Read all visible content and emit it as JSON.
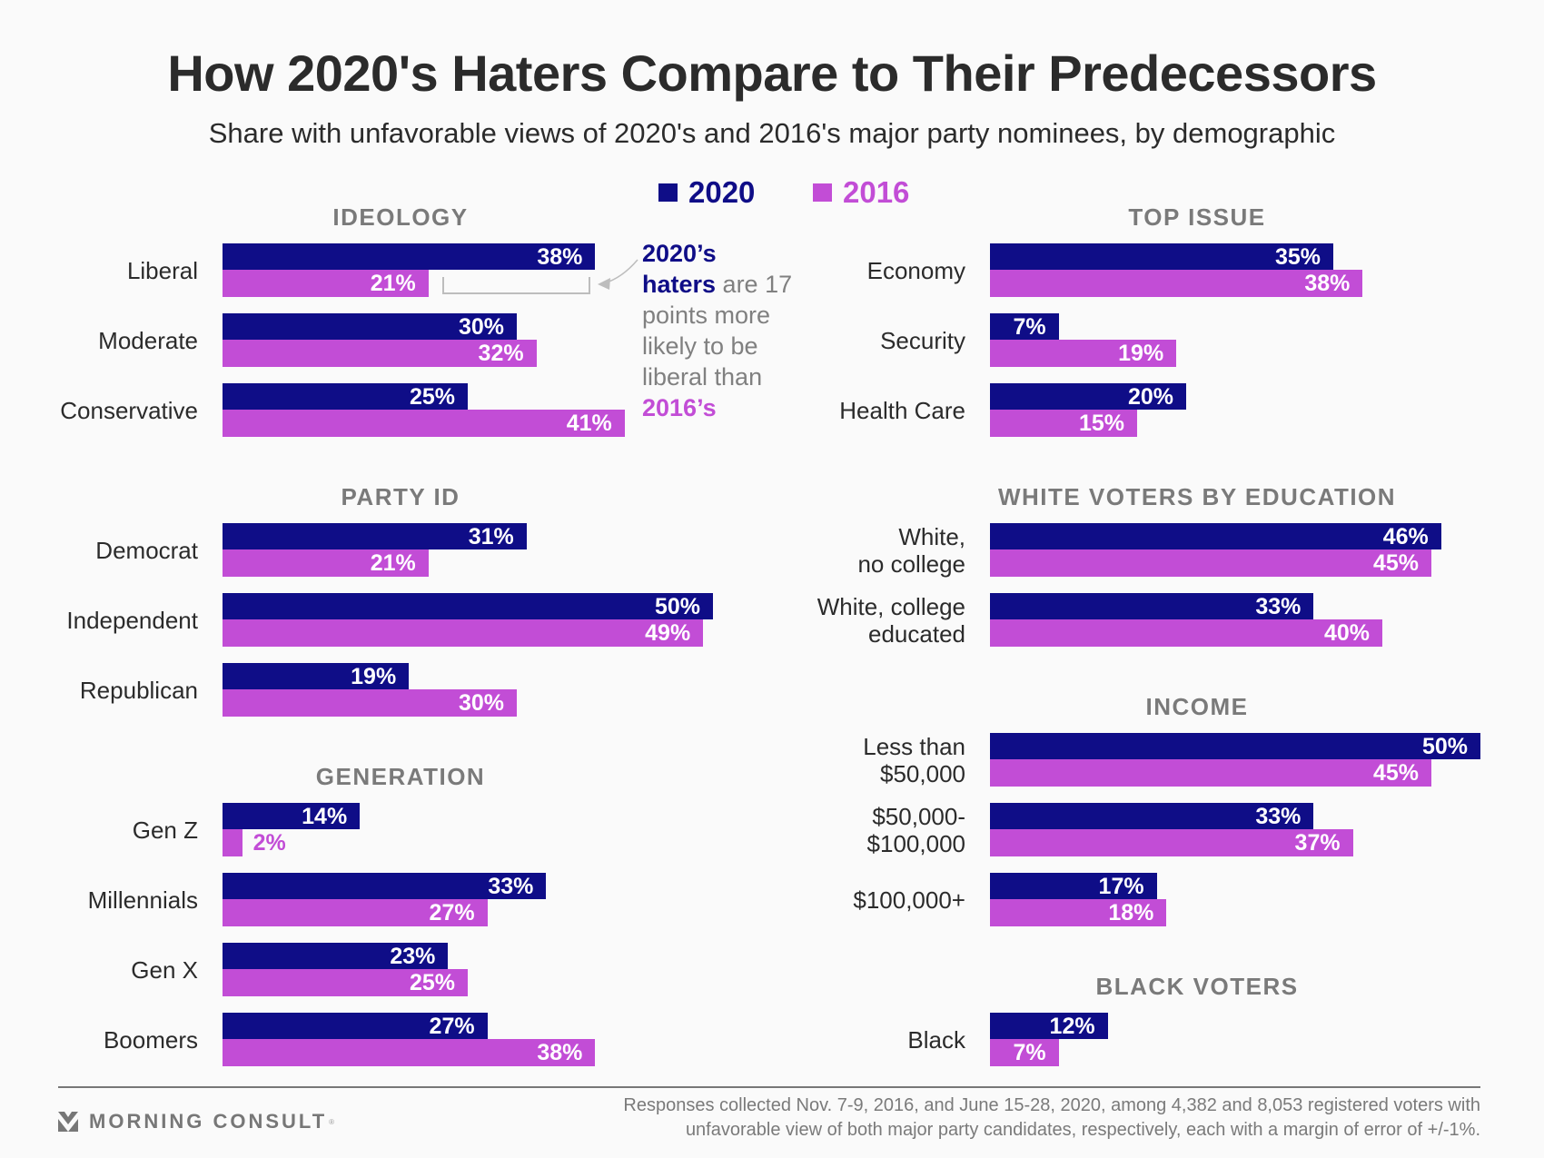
{
  "header": {
    "title": "How 2020's Haters Compare to Their Predecessors",
    "subtitle": "Share with unfavorable views of 2020's and 2016's major party nominees, by demographic"
  },
  "legend": [
    {
      "label": "2020",
      "color": "#0f0d87"
    },
    {
      "label": "2016",
      "color": "#c24dd6"
    }
  ],
  "annotation": {
    "part1": "2020’s",
    "part2": "haters",
    "part3": " are 17 points more likely to be liberal than ",
    "part4": "2016’s"
  },
  "footer": {
    "logo": "MORNING CONSULT",
    "logo_mark": "®",
    "note_line1": "Responses collected Nov. 7-9, 2016, and June 15-28, 2020, among 4,382 and 8,053 registered voters with",
    "note_line2": "unfavorable view of both major party candidates, respectively, each with a margin of error of +/-1%."
  },
  "chart_data": {
    "type": "bar",
    "orientation": "horizontal",
    "title": "How 2020's Haters Compare to Their Predecessors",
    "subtitle": "Share with unfavorable views of 2020's and 2016's major party nominees, by demographic",
    "unit": "%",
    "series_names": [
      "2020",
      "2016"
    ],
    "colors": {
      "2020": "#0f0d87",
      "2016": "#c24dd6"
    },
    "xlim": [
      0,
      50
    ],
    "grid": false,
    "legend": "top-center",
    "panels": [
      {
        "heading": "IDEOLOGY",
        "column": "left",
        "categories": [
          "Liberal",
          "Moderate",
          "Conservative"
        ],
        "series": [
          {
            "name": "2020",
            "values": [
              38,
              30,
              25
            ]
          },
          {
            "name": "2016",
            "values": [
              21,
              32,
              41
            ]
          }
        ]
      },
      {
        "heading": "PARTY ID",
        "column": "left",
        "categories": [
          "Democrat",
          "Independent",
          "Republican"
        ],
        "series": [
          {
            "name": "2020",
            "values": [
              31,
              50,
              19
            ]
          },
          {
            "name": "2016",
            "values": [
              21,
              49,
              30
            ]
          }
        ]
      },
      {
        "heading": "GENERATION",
        "column": "left",
        "categories": [
          "Gen Z",
          "Millennials",
          "Gen X",
          "Boomers"
        ],
        "series": [
          {
            "name": "2020",
            "values": [
              14,
              33,
              23,
              27
            ]
          },
          {
            "name": "2016",
            "values": [
              2,
              27,
              25,
              38
            ]
          }
        ]
      },
      {
        "heading": "TOP ISSUE",
        "column": "right",
        "categories": [
          "Economy",
          "Security",
          "Health Care"
        ],
        "series": [
          {
            "name": "2020",
            "values": [
              35,
              7,
              20
            ]
          },
          {
            "name": "2016",
            "values": [
              38,
              19,
              15
            ]
          }
        ]
      },
      {
        "heading": "WHITE VOTERS BY EDUCATION",
        "column": "right",
        "categories": [
          "White,\nno college",
          "White, college\neducated"
        ],
        "series": [
          {
            "name": "2020",
            "values": [
              46,
              33
            ]
          },
          {
            "name": "2016",
            "values": [
              45,
              40
            ]
          }
        ]
      },
      {
        "heading": "INCOME",
        "column": "right",
        "categories": [
          "Less than\n$50,000",
          "$50,000-\n$100,000",
          "$100,000+"
        ],
        "series": [
          {
            "name": "2020",
            "values": [
              50,
              33,
              17
            ]
          },
          {
            "name": "2016",
            "values": [
              45,
              37,
              18
            ]
          }
        ]
      },
      {
        "heading": "BLACK VOTERS",
        "column": "right",
        "categories": [
          "Black"
        ],
        "series": [
          {
            "name": "2020",
            "values": [
              12
            ]
          },
          {
            "name": "2016",
            "values": [
              7
            ]
          }
        ]
      }
    ]
  }
}
